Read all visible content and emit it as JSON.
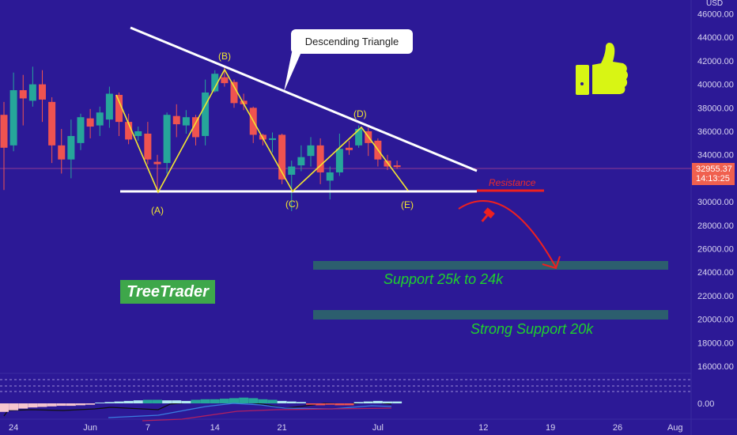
{
  "chart_data": {
    "type": "candlestick",
    "currency": "USD",
    "y_ticks": [
      46000,
      44000,
      42000,
      40000,
      38000,
      36000,
      34000,
      30000,
      28000,
      26000,
      24000,
      22000,
      20000,
      18000,
      16000
    ],
    "y_tick_labels": [
      "46000.00",
      "44000.00",
      "42000.00",
      "40000.00",
      "38000.00",
      "36000.00",
      "34000.00",
      "30000.00",
      "28000.00",
      "26000.00",
      "24000.00",
      "22000.00",
      "20000.00",
      "18000.00",
      "16000.00"
    ],
    "ylim": [
      16000,
      46000
    ],
    "x_ticks": [
      {
        "day": 1,
        "label": "24"
      },
      {
        "day": 9,
        "label": "Jun"
      },
      {
        "day": 15,
        "label": "7"
      },
      {
        "day": 22,
        "label": "14"
      },
      {
        "day": 29,
        "label": "21"
      },
      {
        "day": 39,
        "label": "Jul"
      },
      {
        "day": 50,
        "label": "12"
      },
      {
        "day": 57,
        "label": "19"
      },
      {
        "day": 64,
        "label": "26"
      },
      {
        "day": 70,
        "label": "Aug"
      }
    ],
    "candles": [
      [
        37400,
        38500,
        31000,
        34600
      ],
      [
        34800,
        41000,
        34300,
        39500
      ],
      [
        39500,
        40800,
        36500,
        38800
      ],
      [
        38600,
        41500,
        38100,
        40000
      ],
      [
        40000,
        41200,
        36800,
        38700
      ],
      [
        38500,
        38900,
        33300,
        34800
      ],
      [
        34800,
        36200,
        32400,
        33600
      ],
      [
        33600,
        37000,
        32000,
        35600
      ],
      [
        35000,
        37500,
        34400,
        37200
      ],
      [
        37100,
        37900,
        35400,
        36400
      ],
      [
        36500,
        38100,
        35600,
        37600
      ],
      [
        37000,
        39800,
        36300,
        39200
      ],
      [
        39100,
        39300,
        35600,
        36800
      ],
      [
        36800,
        37500,
        34900,
        35300
      ],
      [
        35600,
        36400,
        35200,
        36000
      ],
      [
        35800,
        36800,
        33200,
        33600
      ],
      [
        33400,
        34000,
        31000,
        33200
      ],
      [
        33300,
        37600,
        32400,
        37400
      ],
      [
        37300,
        38300,
        35500,
        36600
      ],
      [
        36500,
        37800,
        35800,
        37200
      ],
      [
        37200,
        37400,
        34800,
        35500
      ],
      [
        35600,
        40400,
        34800,
        39300
      ],
      [
        39400,
        41200,
        39300,
        40900
      ],
      [
        40600,
        41500,
        39800,
        40100
      ],
      [
        40200,
        40400,
        38000,
        38400
      ],
      [
        38600,
        39200,
        37800,
        38300
      ],
      [
        38000,
        38100,
        35000,
        35700
      ],
      [
        35700,
        35800,
        34800,
        35300
      ],
      [
        35300,
        35900,
        34200,
        35400
      ],
      [
        35700,
        35800,
        31500,
        31900
      ],
      [
        32300,
        33500,
        29200,
        33000
      ],
      [
        33100,
        34800,
        32600,
        33800
      ],
      [
        33900,
        35500,
        33000,
        34800
      ],
      [
        34800,
        35400,
        31500,
        32500
      ],
      [
        31800,
        33000,
        30200,
        32500
      ],
      [
        32500,
        35800,
        32200,
        34500
      ],
      [
        34600,
        35200,
        34000,
        34400
      ],
      [
        34800,
        36500,
        34600,
        36200
      ],
      [
        36000,
        36300,
        33900,
        35000
      ],
      [
        35200,
        35400,
        33000,
        33600
      ],
      [
        33500,
        34000,
        32700,
        33000
      ],
      [
        33100,
        33500,
        32800,
        32955.37
      ]
    ],
    "last_price": "32955.37",
    "countdown": "14:13:25",
    "indicator_zero_label": "0.00",
    "colors": {
      "up": "#26a69a",
      "down": "#ef5350",
      "background": "#2c1996"
    }
  },
  "annotations": {
    "pattern_title": "Descending Triangle",
    "points": [
      "(A)",
      "(B)",
      "(C)",
      "(D)",
      "(E)"
    ],
    "resistance_label": "Resistance",
    "support_1": "Support  25k to 24k",
    "support_2": "Strong Support 20k",
    "brand": "TreeTrader"
  }
}
